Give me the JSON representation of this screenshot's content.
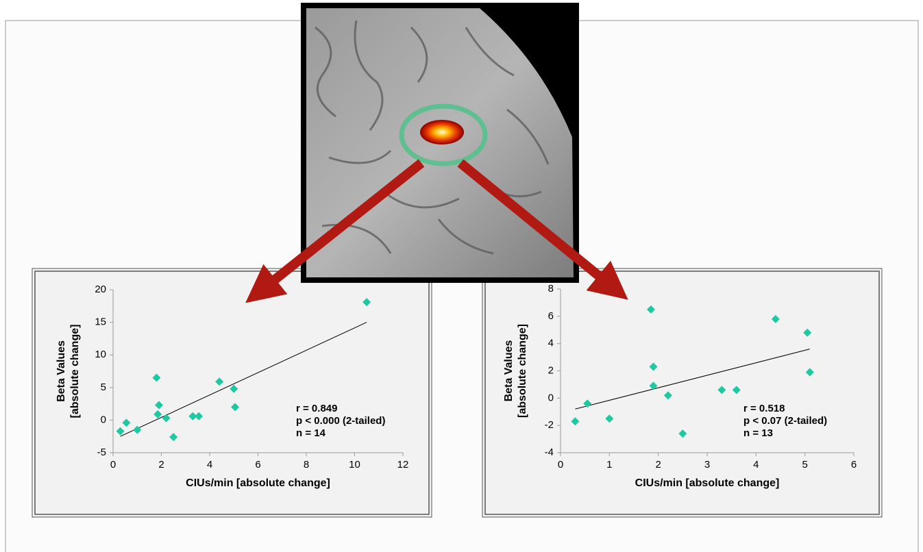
{
  "chart_data": [
    {
      "type": "scatter",
      "xlabel": "CIUs/min [absolute change]",
      "ylabel": [
        "Beta Values",
        "[absolute change]"
      ],
      "x": [
        0.3,
        0.55,
        1.0,
        1.8,
        1.85,
        1.9,
        2.2,
        2.5,
        3.3,
        3.55,
        4.4,
        5.0,
        5.05,
        10.5
      ],
      "values": [
        -1.7,
        -0.4,
        -1.5,
        6.5,
        0.9,
        2.3,
        0.3,
        -2.6,
        0.6,
        0.6,
        5.9,
        4.8,
        2.0,
        18.1
      ],
      "color": "#1ec8a0",
      "trend_line": {
        "x": [
          0.3,
          10.5
        ],
        "y": [
          -2.5,
          15
        ],
        "color": "#000000"
      },
      "annotations": [
        "r = 0.849",
        "p < 0.000 (2-tailed)",
        "n = 14"
      ],
      "annotation_color": "#c00000",
      "xlim": [
        0,
        12
      ],
      "ylim": [
        -5,
        20
      ],
      "xticks": [
        0,
        2,
        4,
        6,
        8,
        10,
        12
      ],
      "yticks": [
        -5,
        0,
        5,
        10,
        15,
        20
      ]
    },
    {
      "type": "scatter",
      "xlabel": "CIUs/min [absolute change]",
      "ylabel": [
        "Beta Values",
        "[absolute change]"
      ],
      "x": [
        0.3,
        0.55,
        1.0,
        1.85,
        1.9,
        1.9,
        2.2,
        2.5,
        3.3,
        3.6,
        4.4,
        5.05,
        5.1
      ],
      "values": [
        -1.7,
        -0.4,
        -1.5,
        6.5,
        2.3,
        0.9,
        0.2,
        -2.6,
        0.6,
        0.6,
        5.8,
        4.8,
        1.9
      ],
      "color": "#1ec8a0",
      "trend_line": {
        "x": [
          0.3,
          5.1
        ],
        "y": [
          -0.8,
          3.6
        ],
        "color": "#000000"
      },
      "annotations": [
        "r = 0.518",
        "p < 0.07 (2-tailed)",
        "n = 13"
      ],
      "annotation_color": "#c00000",
      "xlim": [
        0,
        6
      ],
      "ylim": [
        -4,
        8
      ],
      "xticks": [
        0,
        1,
        2,
        3,
        4,
        5,
        6
      ],
      "yticks": [
        -4,
        -2,
        0,
        2,
        4,
        6,
        8
      ]
    }
  ]
}
